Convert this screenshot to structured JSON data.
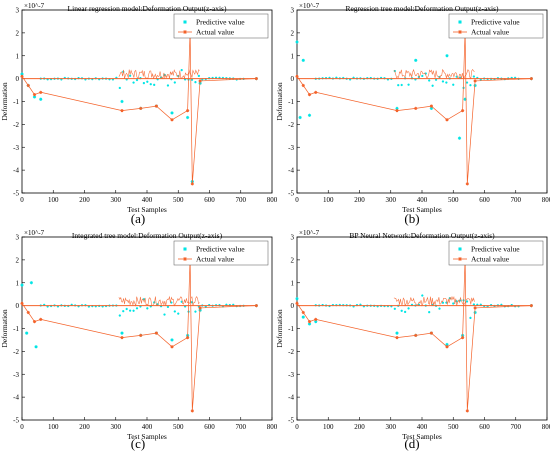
{
  "colors": {
    "predictive": "#00e5e5",
    "actual": "#f4622a",
    "axis": "#000000"
  },
  "chart_data": [
    {
      "type": "line",
      "panel_label": "(a)",
      "title": "Linear regression model:Deformation Output(z-axis)",
      "xlabel": "Test Samples",
      "ylabel": "Deformation",
      "y_exponent": "×10^-7",
      "xlim": [
        0,
        800
      ],
      "ylim": [
        -5,
        3
      ],
      "xticks": [
        "0",
        "100",
        "200",
        "300",
        "400",
        "500",
        "600",
        "700",
        "800"
      ],
      "yticks": [
        "-5",
        "-4",
        "-3",
        "-2",
        "-1",
        "0",
        "1",
        "2",
        "3"
      ],
      "legend_position": "top-right",
      "series": [
        {
          "name": "Predictive value",
          "style": "scatter-star",
          "x": [
            0,
            20,
            40,
            60,
            320,
            380,
            430,
            480,
            530,
            538,
            545,
            570,
            750
          ],
          "y": [
            0.2,
            -0.3,
            -0.8,
            -0.9,
            -1.0,
            -1.3,
            -1.2,
            -1.5,
            -1.7,
            2.1,
            -4.5,
            -0.2,
            0.0
          ]
        },
        {
          "name": "Actual value",
          "style": "line-star",
          "x": [
            0,
            20,
            40,
            60,
            320,
            380,
            430,
            480,
            530,
            538,
            545,
            570,
            750
          ],
          "y": [
            0.1,
            -0.3,
            -0.7,
            -0.6,
            -1.4,
            -1.3,
            -1.2,
            -1.8,
            -1.4,
            2.1,
            -4.6,
            -0.1,
            0.0
          ]
        }
      ]
    },
    {
      "type": "line",
      "panel_label": "(b)",
      "title": "Regression tree model:Deformation Output(z-axis)",
      "xlabel": "Test Samples",
      "ylabel": "Deformation",
      "y_exponent": "×10^-7",
      "xlim": [
        0,
        800
      ],
      "ylim": [
        -5,
        3
      ],
      "xticks": [
        "0",
        "100",
        "200",
        "300",
        "400",
        "500",
        "600",
        "700",
        "800"
      ],
      "yticks": [
        "-5",
        "-4",
        "-3",
        "-2",
        "-1",
        "0",
        "1",
        "2",
        "3"
      ],
      "legend_position": "top-right",
      "series": [
        {
          "name": "Predictive value",
          "style": "scatter-star",
          "x": [
            0,
            10,
            20,
            40,
            320,
            380,
            430,
            480,
            520,
            538,
            570,
            750
          ],
          "y": [
            1.6,
            -1.7,
            0.8,
            -1.6,
            -1.3,
            0.8,
            -1.3,
            1.0,
            -2.6,
            -0.9,
            -0.3,
            0.0
          ]
        },
        {
          "name": "Actual value",
          "style": "line-star",
          "x": [
            0,
            20,
            40,
            60,
            320,
            380,
            430,
            480,
            530,
            538,
            545,
            570,
            750
          ],
          "y": [
            0.1,
            -0.3,
            -0.7,
            -0.6,
            -1.4,
            -1.3,
            -1.2,
            -1.8,
            -1.4,
            2.1,
            -4.6,
            -0.1,
            0.0
          ]
        }
      ]
    },
    {
      "type": "line",
      "panel_label": "(c)",
      "title": "Integrated tree model:Deformation Output(z-axis)",
      "xlabel": "Test Samples",
      "ylabel": "Deformation",
      "y_exponent": "×10^-7",
      "xlim": [
        0,
        800
      ],
      "ylim": [
        -5,
        3
      ],
      "xticks": [
        "0",
        "100",
        "200",
        "300",
        "400",
        "500",
        "600",
        "700",
        "800"
      ],
      "yticks": [
        "-5",
        "-4",
        "-3",
        "-2",
        "-1",
        "0",
        "1",
        "2",
        "3"
      ],
      "legend_position": "top-right",
      "series": [
        {
          "name": "Predictive value",
          "style": "scatter-star",
          "x": [
            0,
            15,
            30,
            45,
            320,
            380,
            430,
            480,
            530,
            570,
            750
          ],
          "y": [
            0.9,
            -1.2,
            1.0,
            -1.8,
            -1.2,
            -1.3,
            -1.2,
            -1.5,
            -1.3,
            -0.2,
            0.0
          ]
        },
        {
          "name": "Actual value",
          "style": "line-star",
          "x": [
            0,
            20,
            40,
            60,
            320,
            380,
            430,
            480,
            530,
            538,
            545,
            570,
            750
          ],
          "y": [
            0.1,
            -0.3,
            -0.7,
            -0.6,
            -1.4,
            -1.3,
            -1.2,
            -1.8,
            -1.4,
            2.1,
            -4.6,
            -0.1,
            0.0
          ]
        }
      ]
    },
    {
      "type": "line",
      "panel_label": "(d)",
      "title": "BP Neural Network:Deformation Output(z-axis)",
      "xlabel": "Test Samples",
      "ylabel": "Deformation",
      "y_exponent": "×10^-7",
      "xlim": [
        0,
        800
      ],
      "ylim": [
        -5,
        3
      ],
      "xticks": [
        "0",
        "100",
        "200",
        "300",
        "400",
        "500",
        "600",
        "700",
        "800"
      ],
      "yticks": [
        "-5",
        "-4",
        "-3",
        "-2",
        "-1",
        "0",
        "1",
        "2",
        "3"
      ],
      "legend_position": "top-right",
      "series": [
        {
          "name": "Predictive value",
          "style": "scatter-star",
          "x": [
            0,
            20,
            40,
            60,
            320,
            380,
            430,
            480,
            530,
            570,
            750
          ],
          "y": [
            0.3,
            -0.5,
            -0.8,
            -0.7,
            -1.2,
            -1.3,
            -1.2,
            -1.7,
            -1.3,
            -0.3,
            0.0
          ]
        },
        {
          "name": "Actual value",
          "style": "line-star",
          "x": [
            0,
            20,
            40,
            60,
            320,
            380,
            430,
            480,
            530,
            538,
            545,
            570,
            750
          ],
          "y": [
            0.1,
            -0.3,
            -0.7,
            -0.6,
            -1.4,
            -1.3,
            -1.2,
            -1.8,
            -1.4,
            2.1,
            -4.6,
            -0.1,
            0.0
          ]
        }
      ]
    }
  ]
}
